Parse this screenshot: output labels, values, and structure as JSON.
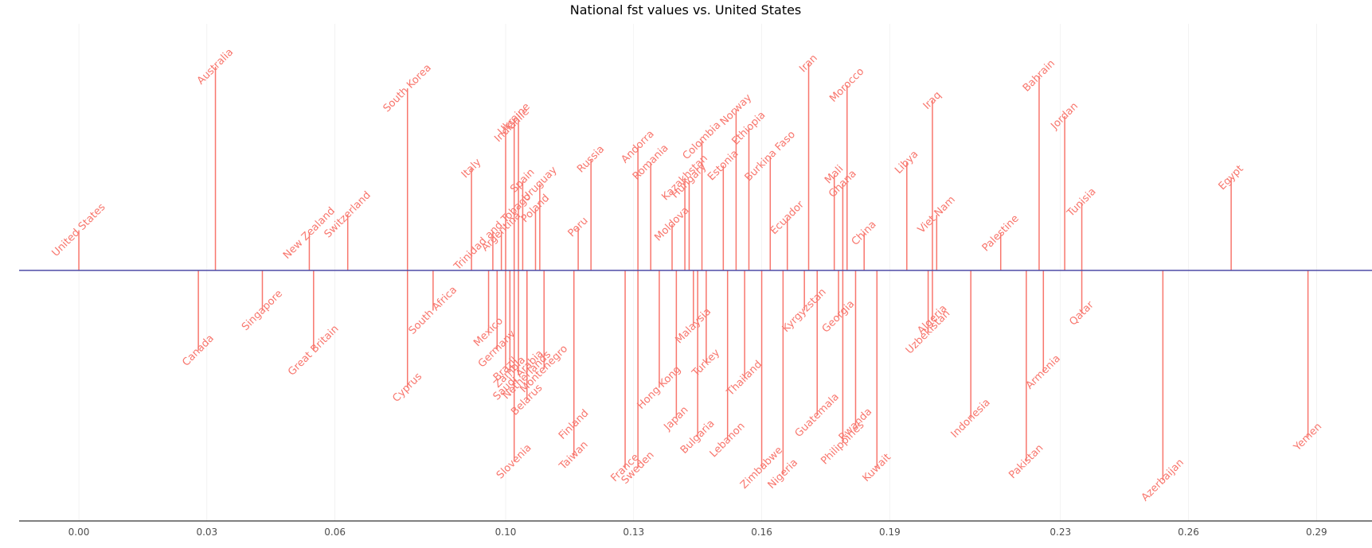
{
  "chart_data": {
    "type": "timeline",
    "title": "National fst values vs. United States",
    "xlabel": "",
    "ylabel": "",
    "xlim": [
      -0.014,
      0.303
    ],
    "x_ticks": [
      0.0,
      0.03,
      0.06,
      0.1,
      0.13,
      0.16,
      0.19,
      0.23,
      0.26,
      0.29
    ],
    "x_tick_labels": [
      "0.00",
      "0.03",
      "0.06",
      "0.10",
      "0.13",
      "0.16",
      "0.19",
      "0.23",
      "0.26",
      "0.29"
    ],
    "grid": true,
    "colors": {
      "segment": "#F8766D",
      "label": "#F8766D",
      "baseline": "#4E4BA6",
      "axis": "#000000",
      "grid": "#ebebeb"
    },
    "points": [
      {
        "country": "United States",
        "fst": 0.0,
        "level": 1.3
      },
      {
        "country": "Australia",
        "fst": 0.032,
        "level": 6.6
      },
      {
        "country": "Canada",
        "fst": 0.028,
        "level": -2.6
      },
      {
        "country": "Singapore",
        "fst": 0.043,
        "level": -1.3
      },
      {
        "country": "New Zealand",
        "fst": 0.054,
        "level": 1.2
      },
      {
        "country": "Great Britain",
        "fst": 0.055,
        "level": -2.6
      },
      {
        "country": "Switzerland",
        "fst": 0.063,
        "level": 1.8
      },
      {
        "country": "South Korea",
        "fst": 0.077,
        "level": 5.9
      },
      {
        "country": "Cyprus",
        "fst": 0.077,
        "level": -3.8
      },
      {
        "country": "South Africa",
        "fst": 0.083,
        "level": -1.3
      },
      {
        "country": "Italy",
        "fst": 0.092,
        "level": 3.3
      },
      {
        "country": "Mexico",
        "fst": 0.096,
        "level": -2.0
      },
      {
        "country": "Trinidad and Tobago",
        "fst": 0.097,
        "level": 1.25
      },
      {
        "country": "Germany",
        "fst": 0.098,
        "level": -2.55
      },
      {
        "country": "Argentina",
        "fst": 0.099,
        "level": 1.25
      },
      {
        "country": "India",
        "fst": 0.1,
        "level": 4.5
      },
      {
        "country": "Brazil",
        "fst": 0.1,
        "level": -3.2
      },
      {
        "country": "Zambia",
        "fst": 0.101,
        "level": -3.3
      },
      {
        "country": "Ukraine",
        "fst": 0.102,
        "level": 4.9
      },
      {
        "country": "Slovenia",
        "fst": 0.102,
        "level": -6.2
      },
      {
        "country": "Chile",
        "fst": 0.103,
        "level": 4.9
      },
      {
        "country": "Saudi Arabia",
        "fst": 0.103,
        "level": -3.4
      },
      {
        "country": "Spain",
        "fst": 0.104,
        "level": 2.9
      },
      {
        "country": "Belarus",
        "fst": 0.105,
        "level": -4.2
      },
      {
        "country": "Netherlands",
        "fst": 0.105,
        "level": -3.4
      },
      {
        "country": "Poland",
        "fst": 0.107,
        "level": 2.0
      },
      {
        "country": "Uruguay",
        "fst": 0.108,
        "level": 2.8
      },
      {
        "country": "Montenegro",
        "fst": 0.109,
        "level": -3.2
      },
      {
        "country": "Peru",
        "fst": 0.117,
        "level": 1.4
      },
      {
        "country": "Finland",
        "fst": 0.116,
        "level": -5.0
      },
      {
        "country": "Taiwan",
        "fst": 0.116,
        "level": -6.0
      },
      {
        "country": "Russia",
        "fst": 0.12,
        "level": 3.6
      },
      {
        "country": "France",
        "fst": 0.128,
        "level": -6.4
      },
      {
        "country": "Andorra",
        "fst": 0.131,
        "level": 4.0
      },
      {
        "country": "Sweden",
        "fst": 0.131,
        "level": -6.4
      },
      {
        "country": "Romania",
        "fst": 0.134,
        "level": 3.5
      },
      {
        "country": "Hong Kong",
        "fst": 0.136,
        "level": -3.8
      },
      {
        "country": "Moldova",
        "fst": 0.139,
        "level": 1.5
      },
      {
        "country": "Japan",
        "fst": 0.14,
        "level": -4.8
      },
      {
        "country": "Kazakhstan",
        "fst": 0.142,
        "level": 3.0
      },
      {
        "country": "Hungary",
        "fst": 0.143,
        "level": 2.9
      },
      {
        "country": "Malaysia",
        "fst": 0.144,
        "level": -1.8
      },
      {
        "country": "Bulgaria",
        "fst": 0.145,
        "level": -5.4
      },
      {
        "country": "Colombia",
        "fst": 0.146,
        "level": 4.2
      },
      {
        "country": "Turkey",
        "fst": 0.147,
        "level": -3.0
      },
      {
        "country": "Estonia",
        "fst": 0.151,
        "level": 3.4
      },
      {
        "country": "Lebanon",
        "fst": 0.152,
        "level": -5.5
      },
      {
        "country": "Norway",
        "fst": 0.154,
        "level": 5.2
      },
      {
        "country": "Thailand",
        "fst": 0.156,
        "level": -3.5
      },
      {
        "country": "Ethiopia",
        "fst": 0.157,
        "level": 4.6
      },
      {
        "country": "Zimbabwe",
        "fst": 0.16,
        "level": -6.4
      },
      {
        "country": "Burkina Faso",
        "fst": 0.162,
        "level": 3.7
      },
      {
        "country": "Nigeria",
        "fst": 0.165,
        "level": -6.6
      },
      {
        "country": "Ecuador",
        "fst": 0.166,
        "level": 1.7
      },
      {
        "country": "Kyrgyzstan",
        "fst": 0.17,
        "level": -1.3
      },
      {
        "country": "Iran",
        "fst": 0.171,
        "level": 6.7
      },
      {
        "country": "Guatemala",
        "fst": 0.173,
        "level": -4.7
      },
      {
        "country": "Mali",
        "fst": 0.177,
        "level": 3.1
      },
      {
        "country": "Georgia",
        "fst": 0.178,
        "level": -1.5
      },
      {
        "country": "Ghana",
        "fst": 0.179,
        "level": 2.8
      },
      {
        "country": "Philippines",
        "fst": 0.179,
        "level": -5.6
      },
      {
        "country": "Morocco",
        "fst": 0.18,
        "level": 6.0
      },
      {
        "country": "Rwanda",
        "fst": 0.182,
        "level": -5.0
      },
      {
        "country": "China",
        "fst": 0.184,
        "level": 1.2
      },
      {
        "country": "Kuwait",
        "fst": 0.187,
        "level": -6.4
      },
      {
        "country": "Libya",
        "fst": 0.194,
        "level": 3.5
      },
      {
        "country": "Uzbekistan",
        "fst": 0.199,
        "level": -2.0
      },
      {
        "country": "Algeria",
        "fst": 0.2,
        "level": -1.6
      },
      {
        "country": "Iraq",
        "fst": 0.2,
        "level": 5.5
      },
      {
        "country": "Viet Nam",
        "fst": 0.201,
        "level": 1.8
      },
      {
        "country": "Indonesia",
        "fst": 0.209,
        "level": -4.8
      },
      {
        "country": "Palestine",
        "fst": 0.216,
        "level": 1.2
      },
      {
        "country": "Pakistan",
        "fst": 0.222,
        "level": -6.2
      },
      {
        "country": "Bahrain",
        "fst": 0.225,
        "level": 6.3
      },
      {
        "country": "Armenia",
        "fst": 0.226,
        "level": -3.3
      },
      {
        "country": "Jordan",
        "fst": 0.231,
        "level": 5.0
      },
      {
        "country": "Qatar",
        "fst": 0.235,
        "level": -1.4
      },
      {
        "country": "Tunisia",
        "fst": 0.235,
        "level": 2.2
      },
      {
        "country": "Azerbaijan",
        "fst": 0.254,
        "level": -6.8
      },
      {
        "country": "Egypt",
        "fst": 0.27,
        "level": 3.0
      },
      {
        "country": "Yemen",
        "fst": 0.288,
        "level": -5.4
      }
    ]
  }
}
